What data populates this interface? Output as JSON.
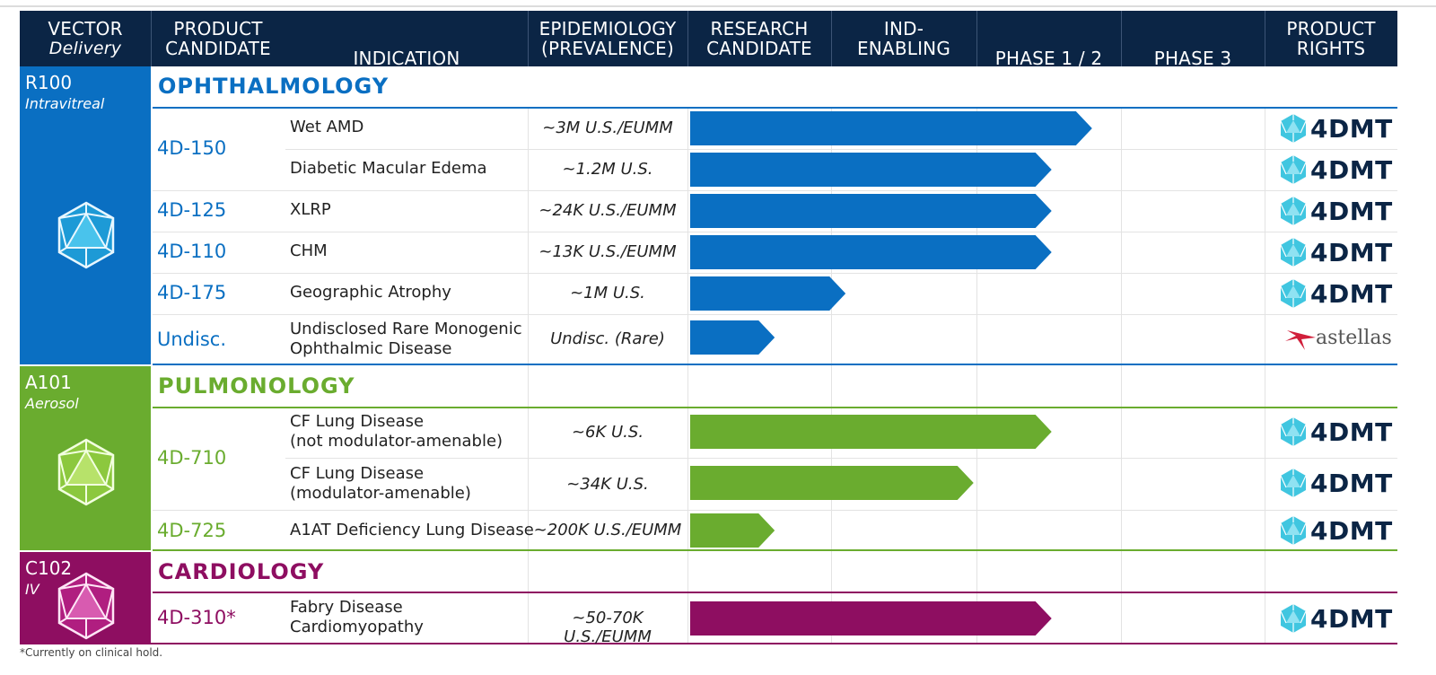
{
  "header": {
    "vector": "VECTOR",
    "vector_sub": "Delivery",
    "product": "PRODUCT",
    "product2": "CANDIDATE",
    "indication": "INDICATION",
    "epi": "EPIDEMIOLOGY",
    "epi2": "(PREVALENCE)",
    "research": "RESEARCH",
    "research2": "CANDIDATE",
    "ind": "IND-",
    "ind2": "ENABLING",
    "phase12": "PHASE 1 / 2",
    "phase3": "PHASE 3",
    "rights": "PRODUCT",
    "rights2": "RIGHTS"
  },
  "stages": [
    "Research Candidate",
    "IND-Enabling",
    "Phase 1 / 2",
    "Phase 3"
  ],
  "colors": {
    "header": "#0b2545",
    "ophthalmology": "#0a6fc2",
    "pulmonology": "#6aac2f",
    "cardiology": "#8e0e61",
    "logo": "#40c6e0"
  },
  "areas": [
    {
      "vector": "R100",
      "route": "Intravitreal",
      "title": "OPHTHALMOLOGY",
      "color": "#0a6fc2",
      "rows": [
        {
          "candidate": "4D-150",
          "indication": "Wet AMD",
          "epi": "~3M U.S./EUMM",
          "progress": 2.8,
          "rights": "4DMT"
        },
        {
          "candidate": "",
          "indication": "Diabetic Macular Edema",
          "epi": "~1.2M U.S.",
          "progress": 2.52,
          "rights": "4DMT"
        },
        {
          "candidate": "4D-125",
          "indication": "XLRP",
          "epi": "~24K U.S./EUMM",
          "progress": 2.52,
          "rights": "4DMT"
        },
        {
          "candidate": "4D-110",
          "indication": "CHM",
          "epi": "~13K U.S./EUMM",
          "progress": 2.52,
          "rights": "4DMT"
        },
        {
          "candidate": "4D-175",
          "indication": "Geographic Atrophy",
          "epi": "~1M U.S.",
          "progress": 1.1,
          "rights": "4DMT"
        },
        {
          "candidate": "Undisc.",
          "indication": "Undisclosed Rare Monogenic",
          "indication2": "Ophthalmic Disease",
          "epi": "Undisc. (Rare)",
          "progress": 0.6,
          "rights": "astellas"
        }
      ]
    },
    {
      "vector": "A101",
      "route": "Aerosol",
      "title": "PULMONOLOGY",
      "color": "#6aac2f",
      "rows": [
        {
          "candidate": "4D-710",
          "indication": "CF Lung Disease",
          "indication2": "(not modulator-amenable)",
          "epi": "~6K U.S.",
          "progress": 2.52,
          "rights": "4DMT"
        },
        {
          "candidate": "",
          "indication": "CF Lung Disease",
          "indication2": "(modulator-amenable)",
          "epi": "~34K U.S.",
          "progress": 1.98,
          "rights": "4DMT"
        },
        {
          "candidate": "4D-725",
          "indication": "A1AT Deficiency Lung Disease",
          "epi": "~200K U.S./EUMM",
          "progress": 0.6,
          "rights": "4DMT"
        }
      ]
    },
    {
      "vector": "C102",
      "route": "IV",
      "title": "CARDIOLOGY",
      "color": "#8e0e61",
      "rows": [
        {
          "candidate": "4D-310*",
          "indication": "Fabry Disease",
          "indication2": "Cardiomyopathy",
          "epi": "~50-70K U.S./EUMM",
          "progress": 2.52,
          "rights": "4DMT"
        }
      ]
    }
  ],
  "footnote": "*Currently on clinical hold."
}
